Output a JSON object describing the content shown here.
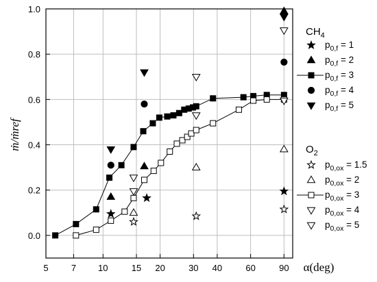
{
  "chart_data": {
    "type": "scatter",
    "x_scale": "log",
    "xlim": [
      5,
      100
    ],
    "ylim": [
      -0.1,
      1.0
    ],
    "x_ticks": [
      5,
      7,
      10,
      15,
      20,
      30,
      40,
      60,
      90
    ],
    "x_tick_labels": [
      "5",
      "7",
      "10",
      "15",
      "20",
      "30",
      "40",
      "60",
      "90"
    ],
    "y_ticks": [
      0.0,
      0.2,
      0.4,
      0.6,
      0.8,
      1.0
    ],
    "y_tick_labels": [
      "0.0",
      "0.2",
      "0.4",
      "0.6",
      "0.8",
      "1.0"
    ],
    "xlabel": "α(deg)",
    "ylabel": "ṁ/ṁref",
    "grid": true,
    "legend_position": "right",
    "legend_groups": [
      {
        "title": "CH4",
        "series_indices": [
          0,
          1,
          2,
          3,
          4
        ]
      },
      {
        "title": "O2",
        "series_indices": [
          5,
          6,
          7,
          8,
          9
        ]
      }
    ],
    "series": [
      {
        "name": "p0,f = 1",
        "label_main": "p",
        "label_sub": "0,f",
        "label_value": " = 1",
        "marker": "star",
        "filled": true,
        "line": false,
        "x": [
          11,
          17,
          90
        ],
        "y": [
          0.095,
          0.165,
          0.195
        ]
      },
      {
        "name": "p0,f = 2",
        "label_main": "p",
        "label_sub": "0,f",
        "label_value": " = 2",
        "marker": "triangle-up",
        "filled": true,
        "line": false,
        "x": [
          11,
          16.5,
          90
        ],
        "y": [
          0.17,
          0.305,
          0.99
        ]
      },
      {
        "name": "p0,f = 3",
        "label_main": "p",
        "label_sub": "0,f",
        "label_value": " = 3",
        "marker": "square",
        "filled": true,
        "line": true,
        "x": [
          5.6,
          7.2,
          9.2,
          10.8,
          12.5,
          14.5,
          16.3,
          18.3,
          19.8,
          21.8,
          23.5,
          25.2,
          26.8,
          28.3,
          29.8,
          31,
          38,
          55,
          62,
          73,
          90
        ],
        "y": [
          0.0,
          0.05,
          0.115,
          0.255,
          0.31,
          0.39,
          0.46,
          0.495,
          0.52,
          0.525,
          0.53,
          0.54,
          0.555,
          0.56,
          0.565,
          0.57,
          0.605,
          0.61,
          0.615,
          0.62,
          0.62
        ]
      },
      {
        "name": "p0,f = 4",
        "label_main": "p",
        "label_sub": "0,f",
        "label_value": " = 4",
        "marker": "circle",
        "filled": true,
        "line": false,
        "x": [
          11,
          16.5,
          90
        ],
        "y": [
          0.31,
          0.58,
          0.765
        ]
      },
      {
        "name": "p0,f = 5",
        "label_main": "p",
        "label_sub": "0,f",
        "label_value": " = 5",
        "marker": "triangle-down",
        "filled": true,
        "line": false,
        "x": [
          11,
          16.5,
          90
        ],
        "y": [
          0.38,
          0.72,
          0.965
        ]
      },
      {
        "name": "p0,ox = 1.5",
        "label_main": "p",
        "label_sub": "0,ox",
        "label_value": " = 1.5",
        "marker": "star",
        "filled": false,
        "line": false,
        "x": [
          14.5,
          31,
          90
        ],
        "y": [
          0.06,
          0.085,
          0.115
        ]
      },
      {
        "name": "p0,ox = 2",
        "label_main": "p",
        "label_sub": "0,ox",
        "label_value": " = 2",
        "marker": "triangle-up",
        "filled": false,
        "line": false,
        "x": [
          14.5,
          31,
          90
        ],
        "y": [
          0.1,
          0.3,
          0.38
        ]
      },
      {
        "name": "p0,ox = 3",
        "label_main": "p",
        "label_sub": "0,ox",
        "label_value": " = 3",
        "marker": "square",
        "filled": false,
        "line": true,
        "x": [
          7.2,
          9.2,
          11,
          13,
          14.5,
          16.5,
          18.5,
          20.2,
          22.5,
          24.5,
          26.2,
          27.8,
          29.2,
          31,
          38,
          52,
          62,
          73,
          90
        ],
        "y": [
          0.0,
          0.025,
          0.065,
          0.105,
          0.165,
          0.245,
          0.285,
          0.32,
          0.37,
          0.405,
          0.42,
          0.435,
          0.45,
          0.465,
          0.495,
          0.555,
          0.595,
          0.6,
          0.6
        ]
      },
      {
        "name": "p0,ox = 4",
        "label_main": "p",
        "label_sub": "0,ox",
        "label_value": " = 4",
        "marker": "triangle-down",
        "filled": false,
        "line": false,
        "x": [
          14.5,
          31,
          90
        ],
        "y": [
          0.195,
          0.53,
          0.595
        ]
      },
      {
        "name": "p0,ox = 5",
        "label_main": "p",
        "label_sub": "0,ox",
        "label_value": " = 5",
        "marker": "triangle-down",
        "filled": false,
        "line": false,
        "x": [
          14.5,
          31,
          90
        ],
        "y": [
          0.255,
          0.7,
          0.905
        ]
      }
    ]
  }
}
